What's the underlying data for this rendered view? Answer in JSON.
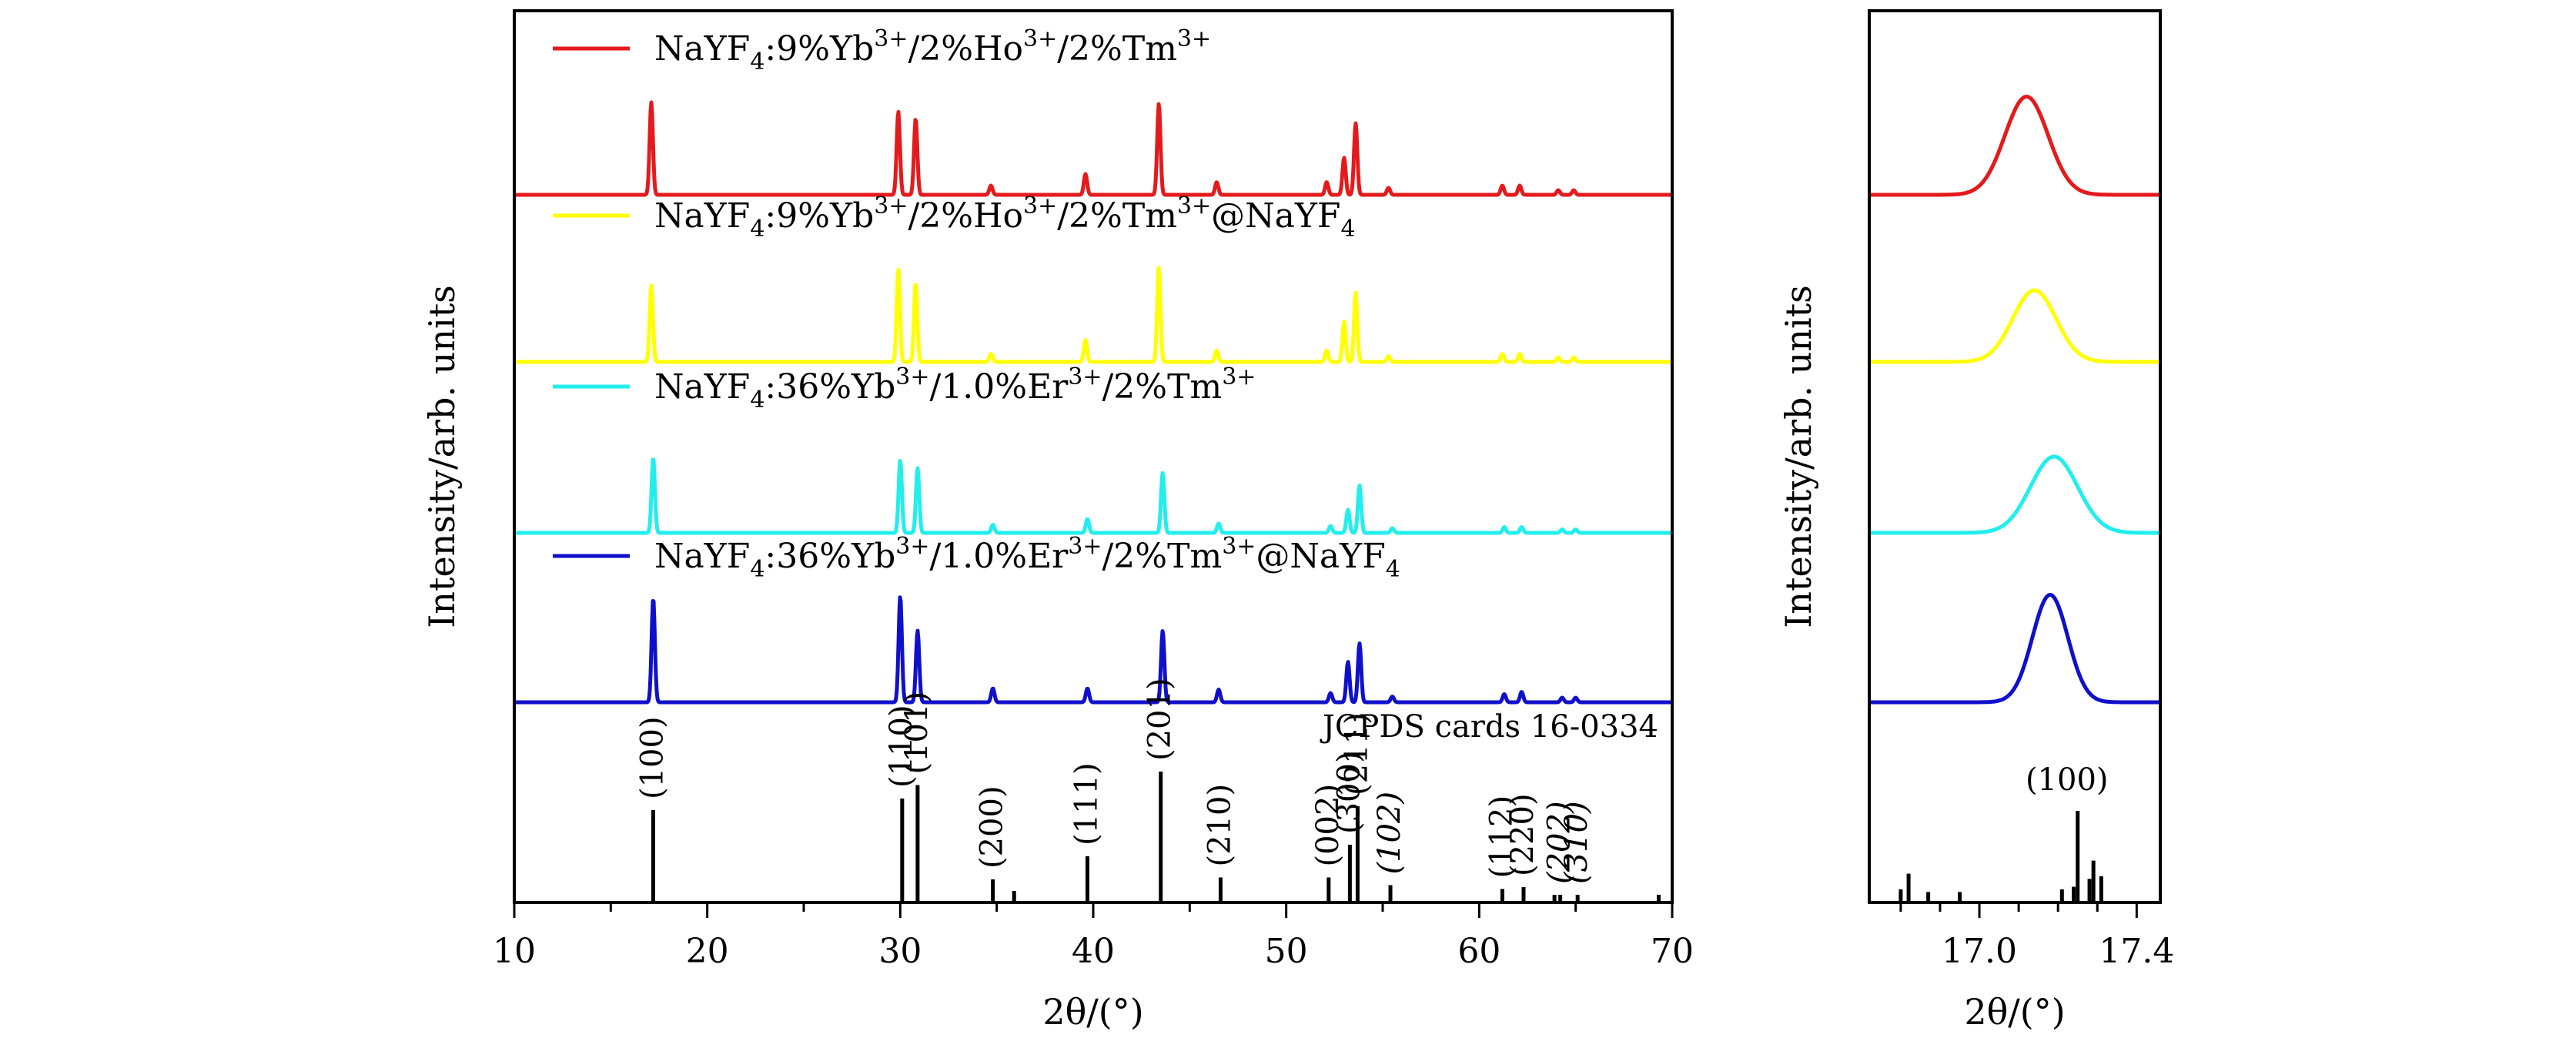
{
  "chart_data": [
    {
      "type": "line",
      "xlabel": "2θ/(°)",
      "ylabel": "Intensity/arb. units",
      "xlim": [
        10,
        70
      ],
      "x_ticks": [
        "10",
        "20",
        "30",
        "40",
        "50",
        "60",
        "70"
      ],
      "grid": false,
      "legend_placement": "inline above each curve",
      "series": [
        {
          "name": "NaYF4:9%Yb3+/2%Ho3+/2%Tm3+",
          "legend": {
            "prefix": "NaYF",
            "sub": "4",
            "a": ":9%Yb",
            "sup1": "3+",
            "b": "/2%Ho",
            "sup2": "3+",
            "c": "/2%Tm",
            "sup3": "3+",
            "suffix": ""
          },
          "color": "#e41a1c",
          "peaks": [
            [
              17.1,
              0.8
            ],
            [
              29.9,
              0.72
            ],
            [
              30.8,
              0.66
            ],
            [
              34.7,
              0.08
            ],
            [
              39.6,
              0.18
            ],
            [
              43.4,
              0.79
            ],
            [
              46.4,
              0.11
            ],
            [
              52.1,
              0.11
            ],
            [
              53.0,
              0.32
            ],
            [
              53.6,
              0.62
            ],
            [
              55.3,
              0.06
            ],
            [
              61.2,
              0.08
            ],
            [
              62.1,
              0.08
            ],
            [
              64.1,
              0.04
            ],
            [
              64.9,
              0.04
            ]
          ]
        },
        {
          "name": "NaYF4:9%Yb3+/2%Ho3+/2%Tm3+@NaYF4",
          "legend": {
            "prefix": "NaYF",
            "sub": "4",
            "a": ":9%Yb",
            "sup1": "3+",
            "b": "/2%Ho",
            "sup2": "3+",
            "c": "/2%Tm",
            "sup3": "3+",
            "suffix": "@NaYF",
            "sub2": "4"
          },
          "color": "#ffff00",
          "peaks": [
            [
              17.1,
              0.66
            ],
            [
              29.9,
              0.8
            ],
            [
              30.8,
              0.68
            ],
            [
              34.7,
              0.07
            ],
            [
              39.6,
              0.19
            ],
            [
              43.4,
              0.82
            ],
            [
              46.4,
              0.1
            ],
            [
              52.1,
              0.1
            ],
            [
              53.0,
              0.35
            ],
            [
              53.6,
              0.6
            ],
            [
              55.3,
              0.05
            ],
            [
              61.2,
              0.07
            ],
            [
              62.1,
              0.07
            ],
            [
              64.1,
              0.04
            ],
            [
              64.9,
              0.04
            ]
          ]
        },
        {
          "name": "NaYF4:36%Yb3+/1.0%Er3+/2%Tm3+",
          "legend": {
            "prefix": "NaYF",
            "sub": "4",
            "a": ":36%Yb",
            "sup1": "3+",
            "b": "/1.0%Er",
            "sup2": "3+",
            "c": "/2%Tm",
            "sup3": "3+",
            "suffix": ""
          },
          "color": "#22eeee",
          "peaks": [
            [
              17.2,
              0.65
            ],
            [
              30.0,
              0.63
            ],
            [
              30.9,
              0.56
            ],
            [
              34.8,
              0.07
            ],
            [
              39.7,
              0.12
            ],
            [
              43.6,
              0.52
            ],
            [
              46.5,
              0.08
            ],
            [
              52.3,
              0.06
            ],
            [
              53.2,
              0.2
            ],
            [
              53.8,
              0.41
            ],
            [
              55.5,
              0.04
            ],
            [
              61.3,
              0.05
            ],
            [
              62.2,
              0.05
            ],
            [
              64.3,
              0.03
            ],
            [
              65.0,
              0.03
            ]
          ]
        },
        {
          "name": "NaYF4:36%Yb3+/1.0%Er3+/2%Tm3+@NaYF4",
          "legend": {
            "prefix": "NaYF",
            "sub": "4",
            "a": ":36%Yb",
            "sup1": "3+",
            "b": "/1.0%Er",
            "sup2": "3+",
            "c": "/2%Tm",
            "sup3": "3+",
            "suffix": "@NaYF",
            "sub2": "4"
          },
          "color": "#1010cc",
          "peaks": [
            [
              17.2,
              0.9
            ],
            [
              30.0,
              0.92
            ],
            [
              30.9,
              0.62
            ],
            [
              34.8,
              0.12
            ],
            [
              39.7,
              0.12
            ],
            [
              43.6,
              0.62
            ],
            [
              46.5,
              0.11
            ],
            [
              52.3,
              0.08
            ],
            [
              53.2,
              0.35
            ],
            [
              53.8,
              0.51
            ],
            [
              55.5,
              0.05
            ],
            [
              61.3,
              0.07
            ],
            [
              62.2,
              0.09
            ],
            [
              64.3,
              0.04
            ],
            [
              65.0,
              0.04
            ]
          ]
        }
      ],
      "reference": {
        "name": "JCPDS cards 16-0334",
        "lines": [
          {
            "x": 17.2,
            "h": 0.48,
            "hkl": "(100)"
          },
          {
            "x": 30.1,
            "h": 0.54,
            "hkl": "(110)"
          },
          {
            "x": 30.9,
            "h": 0.61,
            "hkl": "(101)"
          },
          {
            "x": 34.8,
            "h": 0.12,
            "hkl": "(200)"
          },
          {
            "x": 35.9,
            "h": 0.06,
            "hkl": ""
          },
          {
            "x": 39.7,
            "h": 0.24,
            "hkl": "(111)"
          },
          {
            "x": 43.5,
            "h": 0.68,
            "hkl": "(201)"
          },
          {
            "x": 46.6,
            "h": 0.13,
            "hkl": "(210)"
          },
          {
            "x": 52.2,
            "h": 0.13,
            "hkl": "(002)"
          },
          {
            "x": 53.3,
            "h": 0.3,
            "hkl": "(300)"
          },
          {
            "x": 53.7,
            "h": 0.5,
            "hkl": "(211)"
          },
          {
            "x": 55.4,
            "h": 0.09,
            "hkl": "(102)"
          },
          {
            "x": 61.2,
            "h": 0.07,
            "hkl": "(112)"
          },
          {
            "x": 62.3,
            "h": 0.08,
            "hkl": "(220)"
          },
          {
            "x": 63.9,
            "h": 0.04,
            "hkl": ""
          },
          {
            "x": 64.2,
            "h": 0.04,
            "hkl": "(202)"
          },
          {
            "x": 65.1,
            "h": 0.04,
            "hkl": "(310)"
          },
          {
            "x": 69.3,
            "h": 0.04,
            "hkl": ""
          }
        ]
      }
    },
    {
      "type": "line",
      "xlabel": "2θ/(°)",
      "ylabel": "Intensity/arb. units",
      "xlim": [
        16.72,
        17.46
      ],
      "x_ticks": [
        "17.0",
        "17.4"
      ],
      "x_tick_values": [
        17.0,
        17.4
      ],
      "grid": false,
      "series": [
        {
          "color": "#e41a1c",
          "center": 17.12,
          "height": 0.85,
          "width": 0.055
        },
        {
          "color": "#ffff00",
          "center": 17.14,
          "height": 0.62,
          "width": 0.055
        },
        {
          "color": "#22eeee",
          "center": 17.19,
          "height": 0.66,
          "width": 0.06
        },
        {
          "color": "#1010cc",
          "center": 17.18,
          "height": 0.93,
          "width": 0.045
        }
      ],
      "reference": {
        "label": "(100)",
        "lines": [
          {
            "x": 16.8,
            "h": 0.1
          },
          {
            "x": 16.82,
            "h": 0.22
          },
          {
            "x": 16.87,
            "h": 0.08
          },
          {
            "x": 16.95,
            "h": 0.08
          },
          {
            "x": 17.21,
            "h": 0.1
          },
          {
            "x": 17.24,
            "h": 0.12
          },
          {
            "x": 17.25,
            "h": 0.7
          },
          {
            "x": 17.28,
            "h": 0.18
          },
          {
            "x": 17.29,
            "h": 0.32
          },
          {
            "x": 17.31,
            "h": 0.2
          }
        ]
      }
    }
  ]
}
